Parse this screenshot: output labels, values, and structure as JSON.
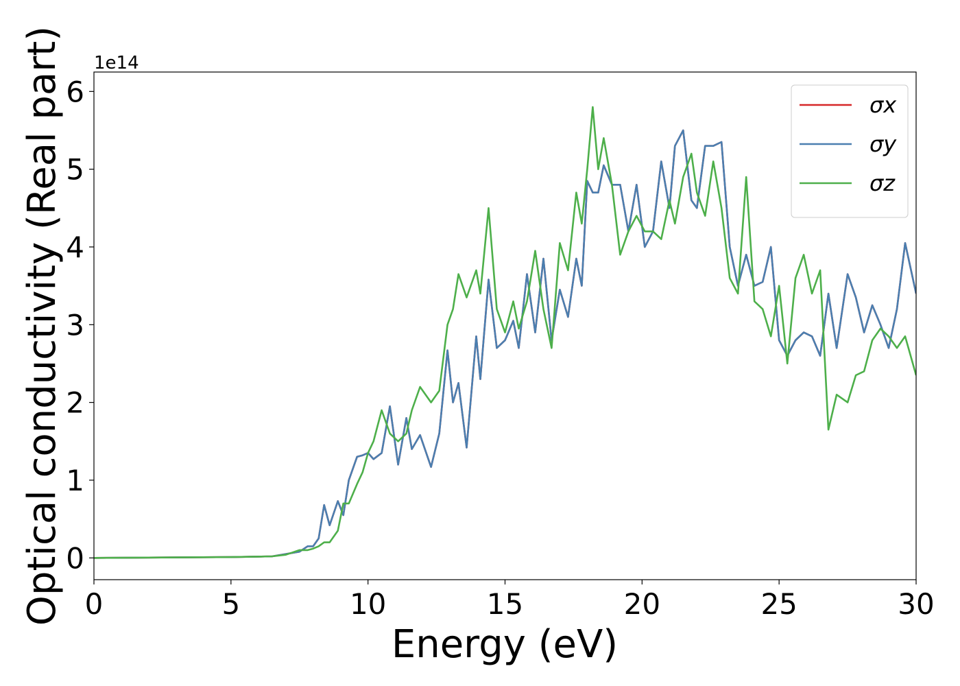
{
  "chart_data": {
    "type": "line",
    "xlabel": "Energy (eV)",
    "ylabel": "Optical conductivity (Real part)",
    "offset_text": "1e14",
    "x": [
      0,
      5,
      6.5,
      7,
      7.5,
      7.8,
      8.0,
      8.2,
      8.4,
      8.6,
      8.9,
      9.1,
      9.3,
      9.6,
      9.8,
      10.0,
      10.2,
      10.5,
      10.8,
      11.1,
      11.4,
      11.6,
      11.9,
      12.3,
      12.6,
      12.9,
      13.1,
      13.3,
      13.6,
      13.95,
      14.1,
      14.4,
      14.7,
      15.0,
      15.3,
      15.5,
      15.8,
      16.1,
      16.4,
      16.7,
      17.0,
      17.3,
      17.6,
      17.8,
      18.0,
      18.2,
      18.4,
      18.6,
      18.9,
      19.2,
      19.5,
      19.8,
      20.1,
      20.4,
      20.7,
      21.0,
      21.2,
      21.5,
      21.8,
      22.0,
      22.3,
      22.6,
      22.9,
      23.2,
      23.5,
      23.8,
      24.1,
      24.4,
      24.7,
      25.0,
      25.3,
      25.6,
      25.9,
      26.2,
      26.5,
      26.8,
      27.1,
      27.5,
      27.8,
      28.1,
      28.4,
      28.7,
      29.0,
      29.3,
      29.6,
      30.0
    ],
    "series": [
      {
        "name": "σx",
        "color": "#d62728",
        "values": [
          0,
          0.01,
          0.02,
          0.05,
          0.08,
          0.15,
          0.15,
          0.25,
          0.68,
          0.42,
          0.73,
          0.55,
          1.0,
          1.3,
          1.32,
          1.35,
          1.27,
          1.35,
          1.95,
          1.2,
          1.8,
          1.4,
          1.58,
          1.17,
          1.6,
          2.67,
          2.0,
          2.25,
          1.42,
          2.85,
          2.3,
          3.58,
          2.7,
          2.8,
          3.05,
          2.7,
          3.65,
          2.9,
          3.85,
          2.8,
          3.45,
          3.1,
          3.85,
          3.5,
          4.85,
          4.7,
          4.7,
          5.05,
          4.8,
          4.8,
          4.2,
          4.8,
          4.0,
          4.2,
          5.1,
          4.5,
          5.3,
          5.5,
          4.6,
          4.5,
          5.3,
          5.3,
          5.35,
          4.0,
          3.5,
          3.9,
          3.5,
          3.55,
          4.0,
          2.8,
          2.6,
          2.8,
          2.9,
          2.85,
          2.6,
          3.4,
          2.7,
          3.65,
          3.35,
          2.9,
          3.25,
          3.0,
          2.7,
          3.2,
          4.05,
          3.4
        ]
      },
      {
        "name": "σy",
        "color": "#4a7fb0",
        "values": [
          0,
          0.01,
          0.02,
          0.05,
          0.08,
          0.15,
          0.15,
          0.25,
          0.68,
          0.42,
          0.73,
          0.55,
          1.0,
          1.3,
          1.32,
          1.35,
          1.27,
          1.35,
          1.95,
          1.2,
          1.8,
          1.4,
          1.58,
          1.17,
          1.6,
          2.67,
          2.0,
          2.25,
          1.42,
          2.85,
          2.3,
          3.58,
          2.7,
          2.8,
          3.05,
          2.7,
          3.65,
          2.9,
          3.85,
          2.8,
          3.45,
          3.1,
          3.85,
          3.5,
          4.85,
          4.7,
          4.7,
          5.05,
          4.8,
          4.8,
          4.2,
          4.8,
          4.0,
          4.2,
          5.1,
          4.5,
          5.3,
          5.5,
          4.6,
          4.5,
          5.3,
          5.3,
          5.35,
          4.0,
          3.5,
          3.9,
          3.5,
          3.55,
          4.0,
          2.8,
          2.6,
          2.8,
          2.9,
          2.85,
          2.6,
          3.4,
          2.7,
          3.65,
          3.35,
          2.9,
          3.25,
          3.0,
          2.7,
          3.2,
          4.05,
          3.4
        ]
      },
      {
        "name": "σz",
        "color": "#4daf4a",
        "values": [
          0,
          0.01,
          0.02,
          0.04,
          0.1,
          0.1,
          0.12,
          0.15,
          0.2,
          0.2,
          0.35,
          0.7,
          0.7,
          0.95,
          1.1,
          1.35,
          1.5,
          1.9,
          1.6,
          1.5,
          1.6,
          1.9,
          2.2,
          2.0,
          2.15,
          3.0,
          3.2,
          3.65,
          3.35,
          3.7,
          3.4,
          4.5,
          3.2,
          2.9,
          3.3,
          2.95,
          3.3,
          3.95,
          3.2,
          2.7,
          4.05,
          3.7,
          4.7,
          4.3,
          5.0,
          5.8,
          5.0,
          5.4,
          4.8,
          3.9,
          4.2,
          4.4,
          4.2,
          4.2,
          4.1,
          4.6,
          4.3,
          4.9,
          5.2,
          4.7,
          4.4,
          5.1,
          4.5,
          3.6,
          3.4,
          4.9,
          3.3,
          3.2,
          2.85,
          3.5,
          2.5,
          3.6,
          3.9,
          3.4,
          3.7,
          1.65,
          2.1,
          2.0,
          2.35,
          2.4,
          2.8,
          2.95,
          2.85,
          2.7,
          2.85,
          2.35
        ]
      }
    ],
    "xlim": [
      0,
      30
    ],
    "xticks": [
      0,
      5,
      10,
      15,
      20,
      25,
      30
    ],
    "ylim": [
      -0.28,
      6.25
    ],
    "yticks": [
      0,
      1,
      2,
      3,
      4,
      5,
      6
    ],
    "grid": false,
    "legend": "upper right"
  }
}
